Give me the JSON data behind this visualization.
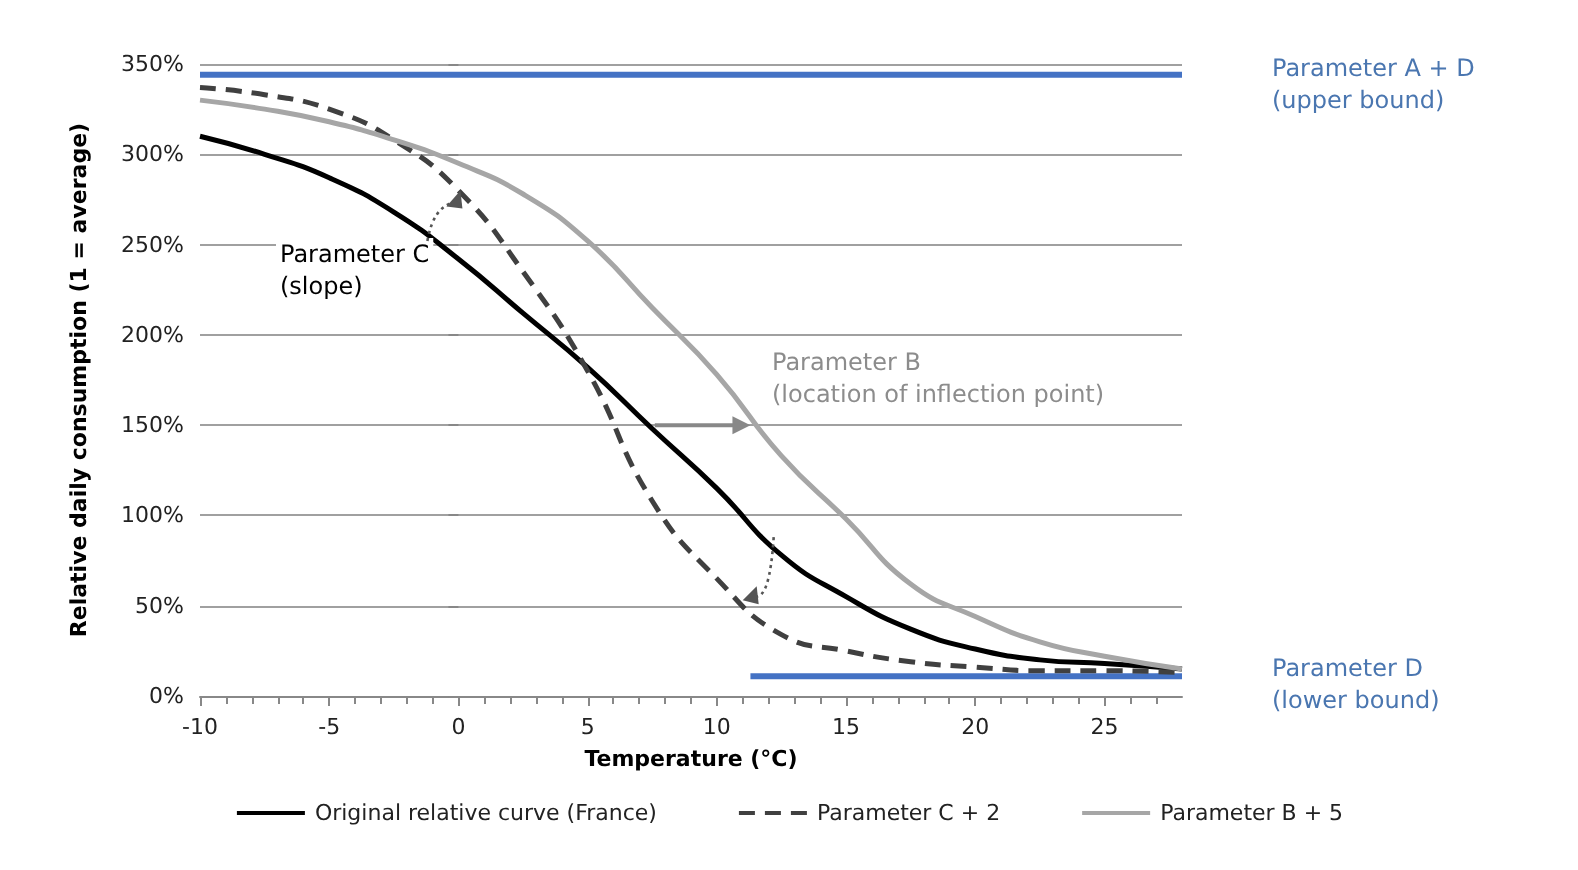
{
  "chart_data": {
    "type": "line",
    "xlabel": "Temperature (°C)",
    "ylabel": "Relative daily consumption (1 = average)",
    "x": [
      -10,
      -7.5,
      -5,
      -2.5,
      0,
      2.5,
      5,
      7.5,
      10,
      12.5,
      15,
      17.5,
      20,
      22.5,
      25,
      28
    ],
    "series": [
      {
        "name": "Original relative curve (France)",
        "color": "#000000",
        "line_style": "solid",
        "values": [
          310,
          300,
          287,
          268,
          242,
          212,
          182,
          148,
          115,
          78,
          55,
          37,
          26,
          20,
          18,
          15
        ]
      },
      {
        "name": "Parameter C + 2",
        "color": "#404040",
        "line_style": "dashed",
        "values": [
          337,
          333,
          325,
          308,
          280,
          235,
          180,
          108,
          65,
          34,
          25,
          19,
          16,
          14,
          14,
          13
        ]
      },
      {
        "name": "Parameter B + 5",
        "color": "#a6a6a6",
        "line_style": "solid",
        "values": [
          330,
          325,
          318,
          308,
          295,
          278,
          252,
          215,
          178,
          133,
          98,
          62,
          44,
          30,
          22,
          15
        ]
      },
      {
        "color": "#4472c4",
        "line_style": "solid",
        "x": [
          -10,
          28
        ],
        "values": [
          344,
          344
        ]
      },
      {
        "color": "#4472c4",
        "line_style": "solid",
        "x": [
          11.3,
          28
        ],
        "values": [
          11,
          11
        ]
      }
    ],
    "annotations": [
      "Parameter A + D\n(upper bound)",
      "Parameter D\n(lower bound)",
      "Parameter C\n(slope)",
      "Parameter B\n(location of inflection point)"
    ],
    "xlim": [
      -10,
      28
    ],
    "xticks": [
      -10,
      -5,
      0,
      5,
      10,
      15,
      20,
      25
    ],
    "ylim": [
      0,
      350
    ],
    "yticks": [
      {
        "value": 0,
        "label": "0%"
      },
      {
        "value": 50,
        "label": "50%"
      },
      {
        "value": 100,
        "label": "100%"
      },
      {
        "value": 150,
        "label": "150%"
      },
      {
        "value": 200,
        "label": "200%"
      },
      {
        "value": 250,
        "label": "250%"
      },
      {
        "value": 300,
        "label": "300%"
      },
      {
        "value": 350,
        "label": "350%"
      }
    ],
    "grid": "y",
    "legend": "bottom",
    "marker": "none"
  }
}
